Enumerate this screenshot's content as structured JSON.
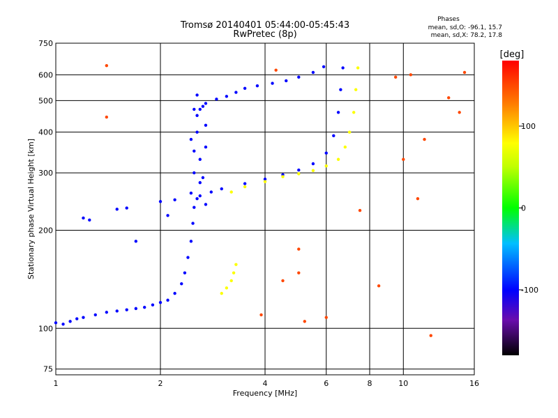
{
  "chart_data": {
    "type": "scatter",
    "title": "Tromsø 20140401 05:44:00-05:45:43",
    "subtitle": "RwPretec (8p)",
    "xlabel": "Frequency [MHz]",
    "ylabel": "Stationary phase Virtual Height [km]",
    "x_scale": "log",
    "y_scale": "log",
    "xlim": [
      1,
      16
    ],
    "ylim": [
      72,
      750
    ],
    "x_ticks": [
      1,
      2,
      4,
      6,
      8,
      10,
      16
    ],
    "y_ticks": [
      75,
      100,
      200,
      300,
      400,
      500,
      600,
      750
    ],
    "grid": true,
    "phase_stats": {
      "title": "Phases",
      "line1": "mean, sd,O: -96.1, 15.7",
      "line2": "mean, sd,X:  78.2, 17.8"
    },
    "colorbar": {
      "label": "[deg]",
      "range": [
        -180,
        180
      ],
      "ticks": [
        100,
        0,
        -100
      ]
    },
    "series": [
      {
        "mode": "O",
        "phase_deg": -100,
        "points": [
          [
            1.0,
            104
          ],
          [
            1.05,
            103
          ],
          [
            1.1,
            105
          ],
          [
            1.15,
            107
          ],
          [
            1.2,
            108
          ],
          [
            1.3,
            110
          ],
          [
            1.4,
            112
          ],
          [
            1.5,
            113
          ],
          [
            1.6,
            114
          ],
          [
            1.7,
            115
          ],
          [
            1.8,
            116
          ],
          [
            1.9,
            118
          ],
          [
            2.0,
            120
          ],
          [
            2.1,
            122
          ],
          [
            2.2,
            128
          ],
          [
            2.3,
            137
          ],
          [
            2.35,
            148
          ],
          [
            2.4,
            165
          ],
          [
            2.45,
            185
          ],
          [
            2.48,
            210
          ],
          [
            2.5,
            235
          ],
          [
            2.55,
            250
          ],
          [
            2.6,
            255
          ],
          [
            2.8,
            262
          ],
          [
            3.0,
            268
          ],
          [
            3.5,
            278
          ],
          [
            4.0,
            287
          ],
          [
            4.5,
            296
          ],
          [
            5.0,
            306
          ],
          [
            5.5,
            320
          ],
          [
            6.0,
            345
          ],
          [
            6.3,
            390
          ],
          [
            6.5,
            460
          ],
          [
            6.6,
            540
          ],
          [
            6.7,
            630
          ]
        ]
      },
      {
        "mode": "O upper",
        "phase_deg": -100,
        "points": [
          [
            2.6,
            470
          ],
          [
            2.7,
            490
          ],
          [
            2.9,
            505
          ],
          [
            3.1,
            515
          ],
          [
            3.3,
            530
          ],
          [
            3.5,
            545
          ],
          [
            3.8,
            555
          ],
          [
            4.2,
            565
          ],
          [
            4.6,
            575
          ],
          [
            5.0,
            590
          ],
          [
            5.5,
            610
          ],
          [
            5.9,
            635
          ]
        ]
      },
      {
        "mode": "O spread",
        "phase_deg": -100,
        "points": [
          [
            2.45,
            260
          ],
          [
            2.5,
            300
          ],
          [
            2.5,
            350
          ],
          [
            2.55,
            400
          ],
          [
            2.55,
            450
          ],
          [
            2.6,
            330
          ],
          [
            2.6,
            280
          ],
          [
            2.65,
            480
          ],
          [
            2.7,
            360
          ],
          [
            2.7,
            420
          ],
          [
            2.45,
            380
          ],
          [
            2.5,
            470
          ],
          [
            2.55,
            520
          ],
          [
            2.65,
            290
          ],
          [
            2.7,
            240
          ]
        ]
      },
      {
        "mode": "X",
        "phase_deg": 78,
        "points": [
          [
            3.2,
            262
          ],
          [
            3.5,
            272
          ],
          [
            4.0,
            282
          ],
          [
            4.5,
            292
          ],
          [
            5.0,
            298
          ],
          [
            5.5,
            305
          ],
          [
            6.0,
            315
          ],
          [
            6.5,
            330
          ],
          [
            6.8,
            360
          ],
          [
            7.0,
            400
          ],
          [
            7.2,
            460
          ],
          [
            7.3,
            540
          ],
          [
            7.4,
            630
          ]
        ]
      },
      {
        "mode": "X lower",
        "phase_deg": 78,
        "points": [
          [
            3.0,
            128
          ],
          [
            3.1,
            133
          ],
          [
            3.2,
            140
          ],
          [
            3.25,
            148
          ],
          [
            3.3,
            157
          ]
        ]
      },
      {
        "mode": "sporadic",
        "phase_deg": -100,
        "points": [
          [
            1.2,
            218
          ],
          [
            1.25,
            215
          ],
          [
            1.5,
            232
          ],
          [
            1.6,
            234
          ],
          [
            2.0,
            245
          ],
          [
            2.1,
            222
          ],
          [
            1.7,
            185
          ],
          [
            2.2,
            248
          ]
        ]
      },
      {
        "mode": "noise",
        "phase_deg": 150,
        "points": [
          [
            1.4,
            445
          ],
          [
            1.4,
            640
          ],
          [
            4.3,
            620
          ],
          [
            5.0,
            175
          ],
          [
            5.0,
            148
          ],
          [
            5.2,
            105
          ],
          [
            10.0,
            330
          ],
          [
            10.5,
            600
          ],
          [
            11.5,
            380
          ],
          [
            13.5,
            510
          ],
          [
            14.5,
            460
          ],
          [
            12.0,
            95
          ],
          [
            3.9,
            110
          ],
          [
            7.5,
            230
          ],
          [
            8.5,
            135
          ],
          [
            4.5,
            140
          ],
          [
            6.0,
            108
          ],
          [
            9.5,
            590
          ],
          [
            15.0,
            610
          ],
          [
            11.0,
            250
          ]
        ]
      }
    ]
  }
}
